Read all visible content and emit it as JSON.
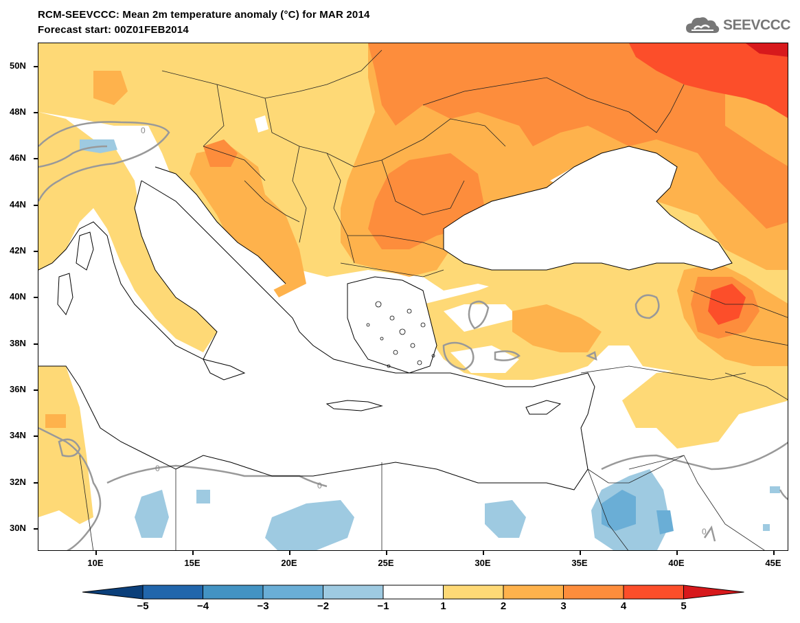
{
  "title_line1": "RCM-SEEVCCC: Mean 2m temperature anomaly (°C) for MAR 2014",
  "title_line2": "Forecast start: 00Z01FEB2014",
  "logo_text": "SEEVCCC",
  "latitude_labels": [
    "50N",
    "48N",
    "46N",
    "44N",
    "42N",
    "40N",
    "38N",
    "36N",
    "34N",
    "32N",
    "30N"
  ],
  "longitude_labels": [
    "10E",
    "15E",
    "20E",
    "25E",
    "30E",
    "35E",
    "40E",
    "45E"
  ],
  "contour_label": "0",
  "colorbar": {
    "tick_labels": [
      "−5",
      "−4",
      "−3",
      "−2",
      "−1",
      "1",
      "2",
      "3",
      "4",
      "5"
    ],
    "colors": [
      "#0b3f7a",
      "#2166ac",
      "#4393c3",
      "#6aaed6",
      "#9ecae1",
      "#ffffff",
      "#fed976",
      "#feb24c",
      "#fd8d3c",
      "#fc4e2a",
      "#d7191c"
    ]
  },
  "map": {
    "lon_range": [
      7,
      45.8
    ],
    "lat_range": [
      29,
      51
    ]
  }
}
